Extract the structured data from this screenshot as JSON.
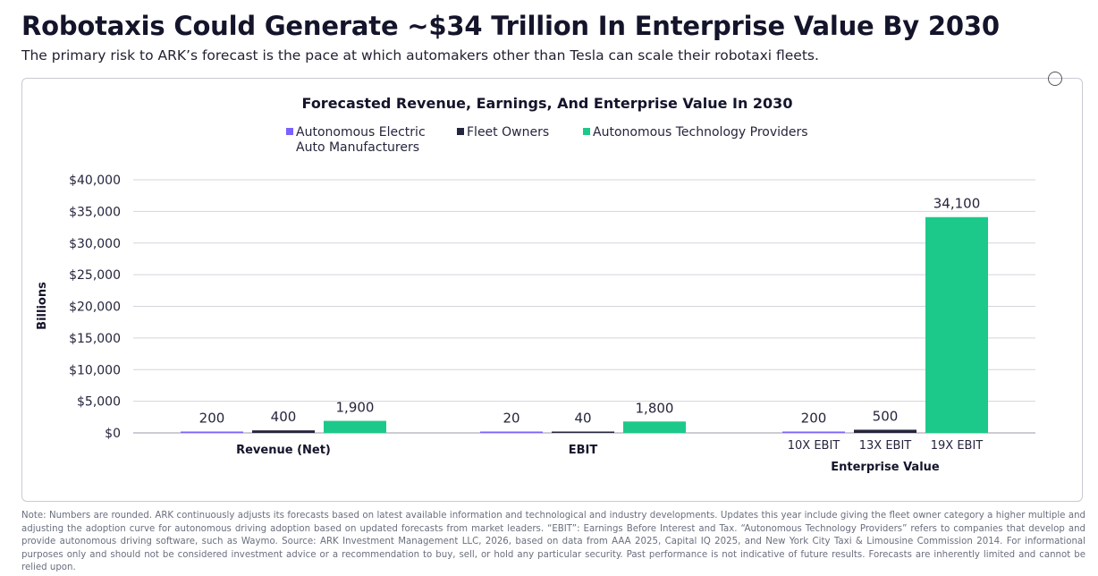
{
  "header": {
    "title": "Robotaxis Could Generate ~$34 Trillion In Enterprise Value By 2030",
    "subtitle": "The primary risk to ARK’s forecast is the pace at which automakers other than Tesla can scale their robotaxi fleets."
  },
  "footnote": "Note: Numbers are rounded. ARK continuously adjusts its forecasts based on latest available information and technological and industry developments. Updates this year include giving the fleet owner category a higher multiple and adjusting the adoption curve for autonomous driving adoption based on updated forecasts from market leaders. “EBIT”: Earnings Before Interest and Tax. “Autonomous Technology Providers” refers to companies that develop and provide autonomous driving software, such as Waymo. Source: ARK Investment Management LLC, 2026, based on data from AAA 2025, Capital IQ 2025, and New York City Taxi & Limousine Commission 2014. For informational purposes only and should not be considered investment advice or a recommendation to buy, sell, or hold any particular security. Past performance is not indicative of future results. Forecasts are inherently limited and cannot be relied upon.",
  "chart_data": {
    "type": "bar",
    "title": "Forecasted Revenue, Earnings, And Enterprise Value In 2030",
    "ylabel": "Billions",
    "ylim": [
      0,
      40000
    ],
    "yticks": [
      0,
      5000,
      10000,
      15000,
      20000,
      25000,
      30000,
      35000,
      40000
    ],
    "ytick_labels": [
      "$0",
      "$5,000",
      "$10,000",
      "$15,000",
      "$20,000",
      "$25,000",
      "$30,000",
      "$35,000",
      "$40,000"
    ],
    "grid": true,
    "legend": "top-center",
    "series": [
      {
        "name": "Autonomous Electric Auto Manufacturers",
        "color": "#7b61ff"
      },
      {
        "name": "Fleet Owners",
        "color": "#25253d"
      },
      {
        "name": "Autonomous Technology Providers",
        "color": "#1cc98a"
      }
    ],
    "groups": [
      {
        "label": "Revenue (Net)",
        "values": [
          200,
          400,
          1900
        ],
        "value_labels": [
          "200",
          "400",
          "1,900"
        ],
        "sub_labels": [
          "",
          "",
          ""
        ]
      },
      {
        "label": "EBIT",
        "values": [
          20,
          40,
          1800
        ],
        "value_labels": [
          "20",
          "40",
          "1,800"
        ],
        "sub_labels": [
          "",
          "",
          ""
        ]
      },
      {
        "label": "Enterprise Value",
        "values": [
          200,
          500,
          34100
        ],
        "value_labels": [
          "200",
          "500",
          "34,100"
        ],
        "sub_labels": [
          "10X EBIT",
          "13X EBIT",
          "19X EBIT"
        ]
      }
    ]
  }
}
